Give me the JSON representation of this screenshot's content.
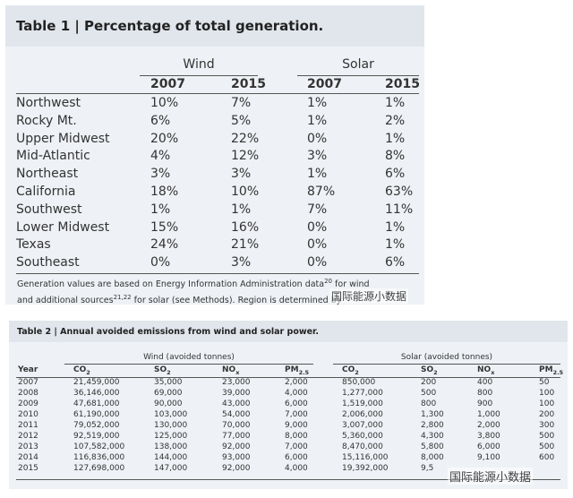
{
  "table1": {
    "title": "Table 1 | Percentage of total generation.",
    "groups": [
      "Wind",
      "Solar"
    ],
    "years": [
      "2007",
      "2015",
      "2007",
      "2015"
    ],
    "rows": [
      [
        "Northwest",
        "10%",
        "7%",
        "1%",
        "1%"
      ],
      [
        "Rocky Mt.",
        "6%",
        "5%",
        "1%",
        "2%"
      ],
      [
        "Upper Midwest",
        "20%",
        "22%",
        "0%",
        "1%"
      ],
      [
        "Mid-Atlantic",
        "4%",
        "12%",
        "3%",
        "8%"
      ],
      [
        "Northeast",
        "3%",
        "3%",
        "1%",
        "6%"
      ],
      [
        "California",
        "18%",
        "10%",
        "87%",
        "63%"
      ],
      [
        "Southwest",
        "1%",
        "1%",
        "7%",
        "11%"
      ],
      [
        "Lower Midwest",
        "15%",
        "16%",
        "0%",
        "1%"
      ],
      [
        "Texas",
        "24%",
        "21%",
        "0%",
        "1%"
      ],
      [
        "Southeast",
        "0%",
        "3%",
        "0%",
        "6%"
      ]
    ],
    "footnote": [
      {
        "text": "Generation values are based on Energy Information Administration data"
      },
      {
        "sup": "20"
      },
      {
        "text": " for wind and additional sources"
      },
      {
        "sup": "21,22"
      },
      {
        "text": " for solar (see Methods). Region is determined by"
      }
    ],
    "watermark": "国际能源小数据"
  },
  "table2": {
    "title": "Table 2 | Annual avoided emissions from wind and solar power.",
    "groups": [
      "Wind (avoided tonnes)",
      "Solar (avoided tonnes)"
    ],
    "columns": [
      "Year",
      {
        "text": "CO",
        "sub": "2"
      },
      {
        "text": "SO",
        "sub": "2"
      },
      {
        "text": "NO",
        "sub": "x"
      },
      {
        "text": "PM",
        "sub": "2.5"
      },
      {
        "text": "CO",
        "sub": "2"
      },
      {
        "text": "SO",
        "sub": "2"
      },
      {
        "text": "NO",
        "sub": "x"
      },
      {
        "text": "PM",
        "sub": "2.5"
      }
    ],
    "rows": [
      [
        "2007",
        "21,459,000",
        "35,000",
        "23,000",
        "2,000",
        "850,000",
        "200",
        "400",
        "50"
      ],
      [
        "2008",
        "36,146,000",
        "69,000",
        "39,000",
        "4,000",
        "1,277,000",
        "500",
        "800",
        "100"
      ],
      [
        "2009",
        "47,681,000",
        "90,000",
        "43,000",
        "6,000",
        "1,519,000",
        "800",
        "900",
        "100"
      ],
      [
        "2010",
        "61,190,000",
        "103,000",
        "54,000",
        "7,000",
        "2,006,000",
        "1,300",
        "1,000",
        "200"
      ],
      [
        "2011",
        "79,052,000",
        "130,000",
        "70,000",
        "9,000",
        "3,007,000",
        "2,800",
        "2,000",
        "300"
      ],
      [
        "2012",
        "92,519,000",
        "125,000",
        "77,000",
        "8,000",
        "5,360,000",
        "4,300",
        "3,800",
        "500"
      ],
      [
        "2013",
        "107,582,000",
        "138,000",
        "92,000",
        "7,000",
        "8,470,000",
        "5,800",
        "6,000",
        "500"
      ],
      [
        "2014",
        "116,836,000",
        "144,000",
        "93,000",
        "6,000",
        "15,116,000",
        "8,000",
        "9,100",
        "600"
      ],
      [
        "2015",
        "127,698,000",
        "147,000",
        "92,000",
        "4,000",
        "19,392,000",
        "9,5",
        null,
        null
      ]
    ],
    "watermark": "国际能源小数据"
  }
}
